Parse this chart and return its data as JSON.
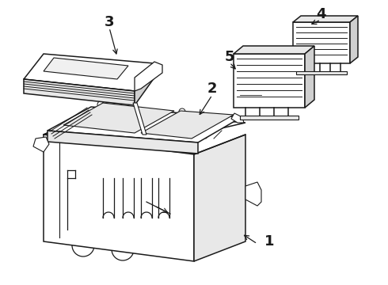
{
  "background_color": "#ffffff",
  "line_color": "#1a1a1a",
  "line_width": 1.1,
  "label_fontsize": 13,
  "label_fontweight": "bold",
  "gray_light": "#e8e8e8",
  "gray_mid": "#d0d0d0"
}
